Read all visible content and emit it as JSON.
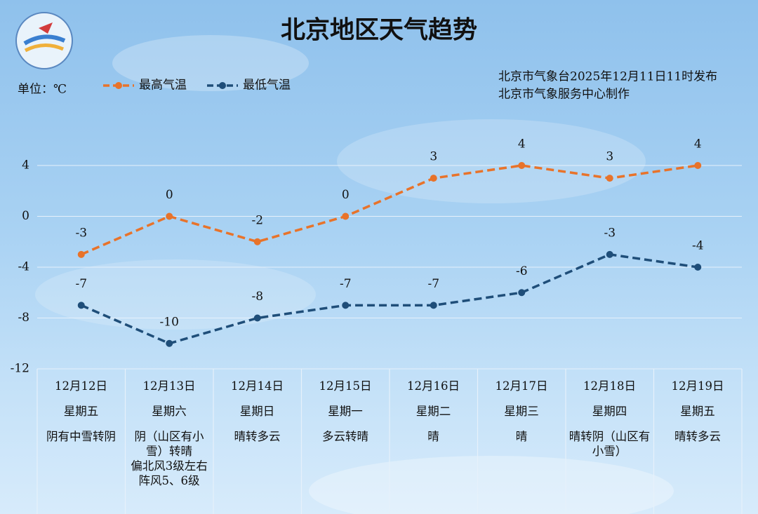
{
  "chart_data": {
    "type": "line",
    "title": "北京地区天气趋势",
    "unit_label": "单位：℃",
    "notes": [
      "北京市气象台2025年12月11日11时发布",
      "北京市气象服务中心制作"
    ],
    "categories": [
      "12月12日",
      "12月13日",
      "12月14日",
      "12月15日",
      "12月16日",
      "12月17日",
      "12月18日",
      "12月19日"
    ],
    "weekdays": [
      "星期五",
      "星期六",
      "星期日",
      "星期一",
      "星期二",
      "星期三",
      "星期四",
      "星期五"
    ],
    "weather": [
      "阴有中雪转阴",
      "阴（山区有小雪）转晴\n偏北风3级左右 阵风5、6级",
      "晴转多云",
      "多云转晴",
      "晴",
      "晴",
      "晴转阴（山区有小雪）",
      "晴转多云"
    ],
    "series": [
      {
        "name": "最高气温",
        "color": "#e8732a",
        "values": [
          -3,
          0,
          -2,
          0,
          3,
          4,
          3,
          4
        ]
      },
      {
        "name": "最低气温",
        "color": "#1f4e79",
        "values": [
          -7,
          -10,
          -8,
          -7,
          -7,
          -6,
          -3,
          -4
        ]
      }
    ],
    "ylim": [
      -12,
      4
    ],
    "yticks": [
      -12,
      -8,
      -4,
      0,
      4
    ],
    "grid": true
  }
}
